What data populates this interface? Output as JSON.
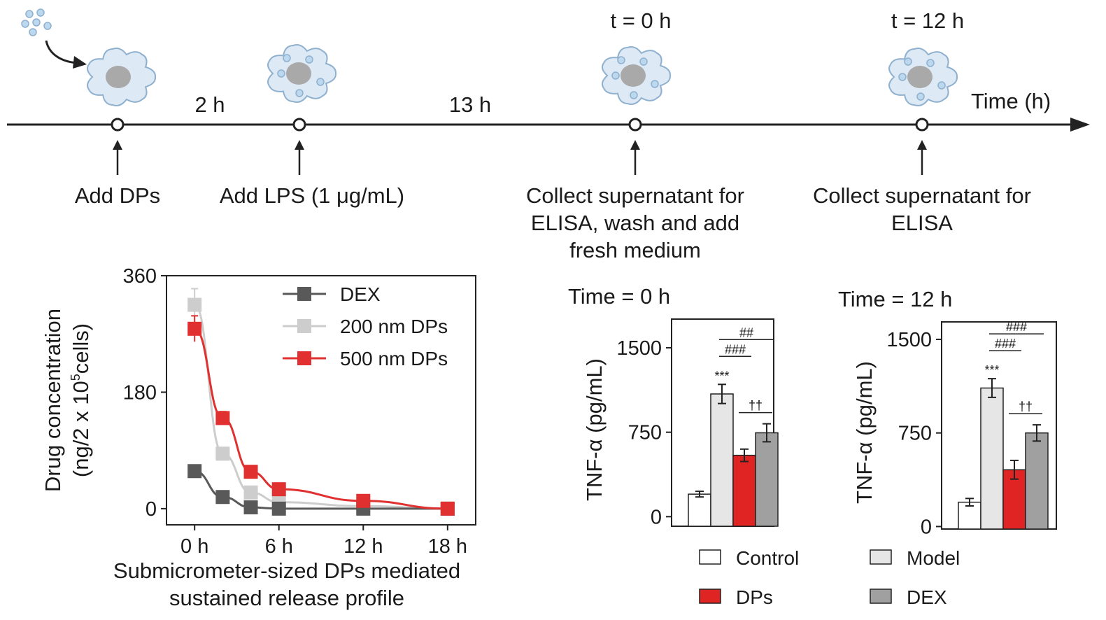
{
  "timeline": {
    "axis_label": "Time (h)",
    "intervals": [
      "2 h",
      "13 h"
    ],
    "time_marks": [
      "t = 0 h",
      "t = 12 h"
    ],
    "steps": [
      {
        "lines": [
          "Add DPs"
        ]
      },
      {
        "lines": [
          "Add LPS (1 μg/mL)"
        ]
      },
      {
        "lines": [
          "Collect supernatant for",
          "ELISA, wash and add",
          "fresh medium"
        ]
      },
      {
        "lines": [
          "Collect supernatant for",
          "ELISA"
        ]
      }
    ],
    "colors": {
      "cell_fill": "#dde9f4",
      "cell_edge": "#8fb1cf",
      "nucleus": "#a9a9a9",
      "particle": "#bcd8ee",
      "arrow": "#222222"
    }
  },
  "chart_data": [
    {
      "type": "line",
      "title": "",
      "xlabel": "",
      "ylabel": [
        "Drug concentration",
        "(ng/2 x 10",
        "5",
        "cells)"
      ],
      "caption": [
        "Submicrometer-sized DPs mediated",
        "sustained release profile"
      ],
      "x": [
        0,
        2,
        4,
        6,
        12,
        18
      ],
      "xticks": [
        0,
        6,
        12,
        18
      ],
      "xtick_labels": [
        "0 h",
        "6 h",
        "12 h",
        "18 h"
      ],
      "xlim": [
        -2,
        20
      ],
      "ylim": [
        -25,
        360
      ],
      "yticks": [
        0,
        180,
        360
      ],
      "ytick_labels": [
        "0",
        "180",
        "360"
      ],
      "legend_position": "top-right",
      "series": [
        {
          "name": "DEX",
          "color": "#595959",
          "x": [
            0,
            2,
            4,
            6,
            12,
            18
          ],
          "y": [
            58,
            18,
            2,
            0,
            0,
            0
          ],
          "err": [
            4,
            3,
            2,
            2,
            2,
            2
          ]
        },
        {
          "name": "200 nm DPs",
          "color": "#cdcdcd",
          "x": [
            0,
            2,
            4,
            6,
            12,
            18
          ],
          "y": [
            315,
            85,
            25,
            10,
            4,
            0
          ],
          "err": [
            25,
            6,
            4,
            3,
            2,
            2
          ]
        },
        {
          "name": "500 nm DPs",
          "color": "#e03030",
          "x": [
            0,
            2,
            4,
            6,
            12,
            18
          ],
          "y": [
            278,
            140,
            57,
            30,
            12,
            0
          ],
          "err": [
            20,
            10,
            6,
            5,
            4,
            2
          ]
        }
      ]
    },
    {
      "type": "bar",
      "title": "Time = 0 h",
      "ylabel": "TNF-α (pg/mL)",
      "ylim": [
        0,
        1500
      ],
      "yticks": [
        0,
        750,
        1500
      ],
      "ytick_labels": [
        "0",
        "750",
        "1500"
      ],
      "categories": [
        "Control",
        "Model",
        "DPs",
        "DEX"
      ],
      "values": [
        200,
        1090,
        545,
        745
      ],
      "errors": [
        25,
        85,
        55,
        80
      ],
      "significance": {
        "model_star": "***",
        "dps_dex_bracket": "††",
        "model_dps_bracket": "###",
        "model_dex_bracket": "##"
      }
    },
    {
      "type": "bar",
      "title": "Time = 12 h",
      "ylabel": "TNF-α (pg/mL)",
      "ylim": [
        0,
        1500
      ],
      "yticks": [
        0,
        750,
        1500
      ],
      "ytick_labels": [
        "0",
        "750",
        "1500"
      ],
      "categories": [
        "Control",
        "Model",
        "DPs",
        "DEX"
      ],
      "values": [
        195,
        1110,
        455,
        750
      ],
      "errors": [
        30,
        75,
        75,
        65
      ],
      "significance": {
        "model_star": "***",
        "dps_dex_bracket": "††",
        "model_dps_bracket": "###",
        "model_dex_bracket": "###"
      }
    }
  ],
  "bar_legend": [
    {
      "label": "Control",
      "color": "#ffffff"
    },
    {
      "label": "Model",
      "color": "#e6e6e6"
    },
    {
      "label": "DPs",
      "color": "#e02424"
    },
    {
      "label": "DEX",
      "color": "#a0a0a0"
    }
  ]
}
